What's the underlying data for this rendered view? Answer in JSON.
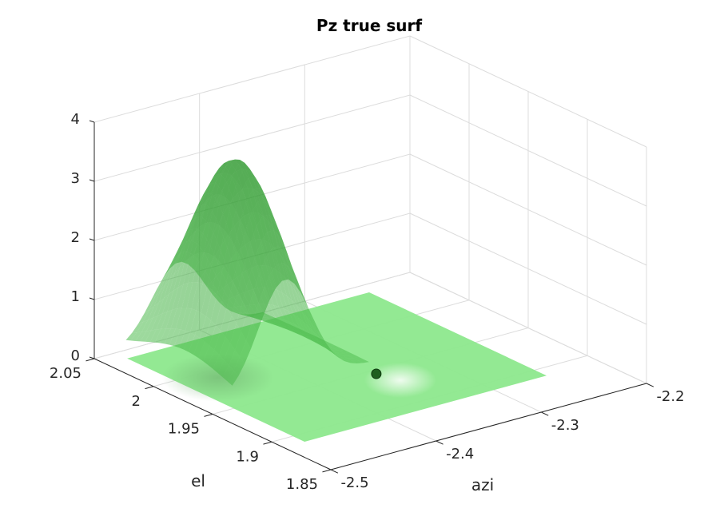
{
  "chart_data": {
    "type": "surface",
    "title": "Pz true surf",
    "xlabel": "azi",
    "ylabel": "el",
    "zlabel": "",
    "xlim": [
      -2.5,
      -2.2
    ],
    "ylim": [
      1.85,
      2.05
    ],
    "zlim": [
      0,
      4
    ],
    "x_ticks": [
      -2.5,
      -2.4,
      -2.3,
      -2.2
    ],
    "x_tick_labels": [
      "-2.5",
      "-2.4",
      "-2.3",
      "-2.2"
    ],
    "y_ticks": [
      1.85,
      1.9,
      1.95,
      2,
      2.05
    ],
    "y_tick_labels": [
      "1.85",
      "1.9",
      "1.95",
      "2",
      "2.05"
    ],
    "z_ticks": [
      0,
      1,
      2,
      3,
      4
    ],
    "z_tick_labels": [
      "0",
      "1",
      "2",
      "3",
      "4"
    ],
    "grid": true,
    "surface": {
      "description_color": "#2ca02c",
      "peak_x": -2.42,
      "peak_y": 2.0,
      "peak_z": 3.45,
      "sigma_x": 0.025,
      "sigma_y": 0.035,
      "x_range": [
        -2.47,
        -2.34
      ],
      "y_range": [
        1.96,
        2.05
      ]
    },
    "plane": {
      "z": 0,
      "x_range": [
        -2.48,
        -2.25
      ],
      "y_range": [
        1.89,
        2.04
      ],
      "color": "#90ee90"
    },
    "marker": {
      "x": -2.35,
      "y": 1.945,
      "z": 0,
      "color": "#1f5f1f"
    }
  },
  "colors": {
    "surface_fill": "#2ca02c",
    "surface_edge": "#1f7a1f",
    "plane_fill": "#8de88d",
    "marker": "#1e5a1e"
  }
}
